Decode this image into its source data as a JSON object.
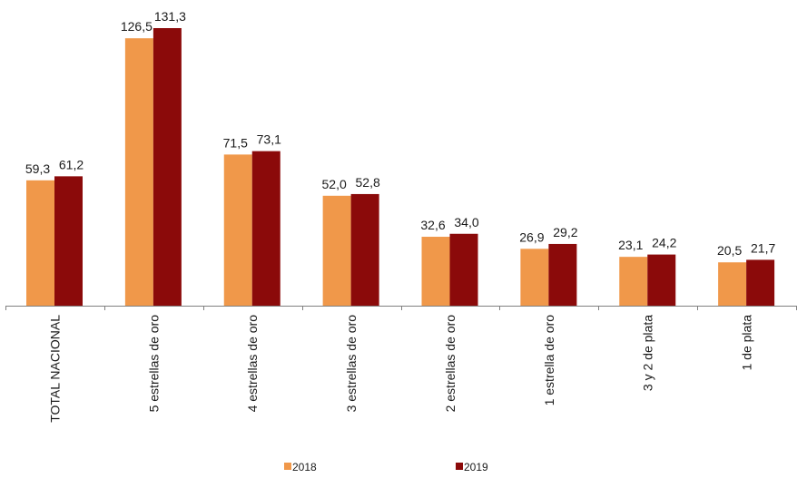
{
  "chart_data": {
    "type": "bar",
    "categories": [
      "TOTAL NACIONAL",
      "5 estrellas de oro",
      "4 estrellas de oro",
      "3 estrellas de oro",
      "2 estrellas de oro",
      "1 estrella de oro",
      "3 y 2 de plata",
      "1 de plata"
    ],
    "series": [
      {
        "name": "2018",
        "color": "#f0984a",
        "values": [
          59.3,
          126.5,
          71.5,
          52.0,
          32.6,
          26.9,
          23.1,
          20.5
        ],
        "labels": [
          "59,3",
          "126,5",
          "71,5",
          "52,0",
          "32,6",
          "26,9",
          "23,1",
          "20,5"
        ]
      },
      {
        "name": "2019",
        "color": "#8b0a0a",
        "values": [
          61.2,
          131.3,
          73.1,
          52.8,
          34.0,
          29.2,
          24.2,
          21.7
        ],
        "labels": [
          "61,2",
          "131,3",
          "73,1",
          "52,8",
          "34,0",
          "29,2",
          "24,2",
          "21,7"
        ]
      }
    ],
    "ylim": [
      0,
      135
    ],
    "legend_position": "bottom",
    "grid": false
  }
}
